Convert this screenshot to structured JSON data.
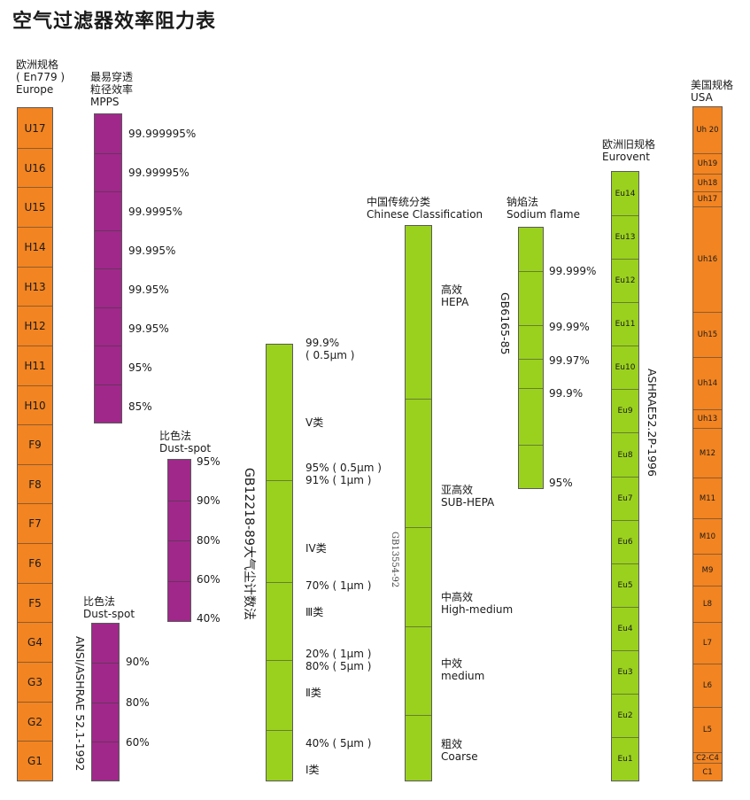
{
  "title": "空气过滤器效率阻力表",
  "europe": {
    "header": "欧洲规格\n( En779 )\nEurope",
    "grades": [
      "U17",
      "U16",
      "U15",
      "H14",
      "H13",
      "H12",
      "H11",
      "H10",
      "F9",
      "F8",
      "F7",
      "F6",
      "F5",
      "G4",
      "G3",
      "G2",
      "G1"
    ]
  },
  "mpps": {
    "header": "最易穿透\n粒径效率\nMPPS",
    "values": [
      "99.999995%",
      "99.99995%",
      "99.9995%",
      "99.995%",
      "99.95%",
      "99.95%",
      "95%",
      "85%"
    ]
  },
  "dustspot_high": {
    "header": "比色法\nDust-spot",
    "values": [
      "95%",
      "90%",
      "80%",
      "60%",
      "40%"
    ]
  },
  "dustspot_low": {
    "header": "比色法\nDust-spot",
    "standard": "ANSI/ASHRAE 52.1-1992",
    "values": [
      "90%",
      "80%",
      "60%"
    ]
  },
  "gb12218": {
    "standard": "GB12218-89大气尘计数法",
    "labels": [
      "99.9%\n( 0.5μm )",
      "V类",
      "95% ( 0.5μm )\n91% ( 1μm )",
      "IV类",
      "70% ( 1μm )",
      "Ⅲ类",
      "20% ( 1μm )\n80% ( 5μm )",
      "Ⅱ类",
      "40% ( 5μm )",
      "Ⅰ类"
    ]
  },
  "chinese": {
    "header": "中国传统分类\nChinese Classification",
    "standard": "GB13554-92",
    "labels": [
      "高效\nHEPA",
      "亚高效\nSUB-HEPA",
      "中高效\nHigh-medium",
      "中效\nmedium",
      "粗效\nCoarse"
    ]
  },
  "sodium": {
    "header": "钠焰法\nSodium flame",
    "standard": "GB6165-85",
    "values": [
      "99.999%",
      "99.99%",
      "99.97%",
      "99.9%",
      "95%"
    ]
  },
  "eurovent": {
    "header": "欧洲旧规格\nEurovent",
    "standard": "ASHRAE52.2P-1996",
    "grades": [
      "Eu14",
      "Eu13",
      "Eu12",
      "Eu11",
      "Eu10",
      "Eu9",
      "Eu8",
      "Eu7",
      "Eu6",
      "Eu5",
      "Eu4",
      "Eu3",
      "Eu2",
      "Eu1"
    ]
  },
  "usa": {
    "header": "美国规格\nUSA",
    "grades": [
      "Uh 20",
      "Uh19",
      "Uh18",
      "Uh17",
      "Uh16",
      "Uh15",
      "Uh14",
      "Uh13",
      "M12",
      "M11",
      "M10",
      "M9",
      "L8",
      "L7",
      "L6",
      "L5",
      "C2-C4",
      "C1"
    ]
  },
  "colors": {
    "orange": "#f28421",
    "purple": "#a0288a",
    "green": "#9ad11e"
  }
}
